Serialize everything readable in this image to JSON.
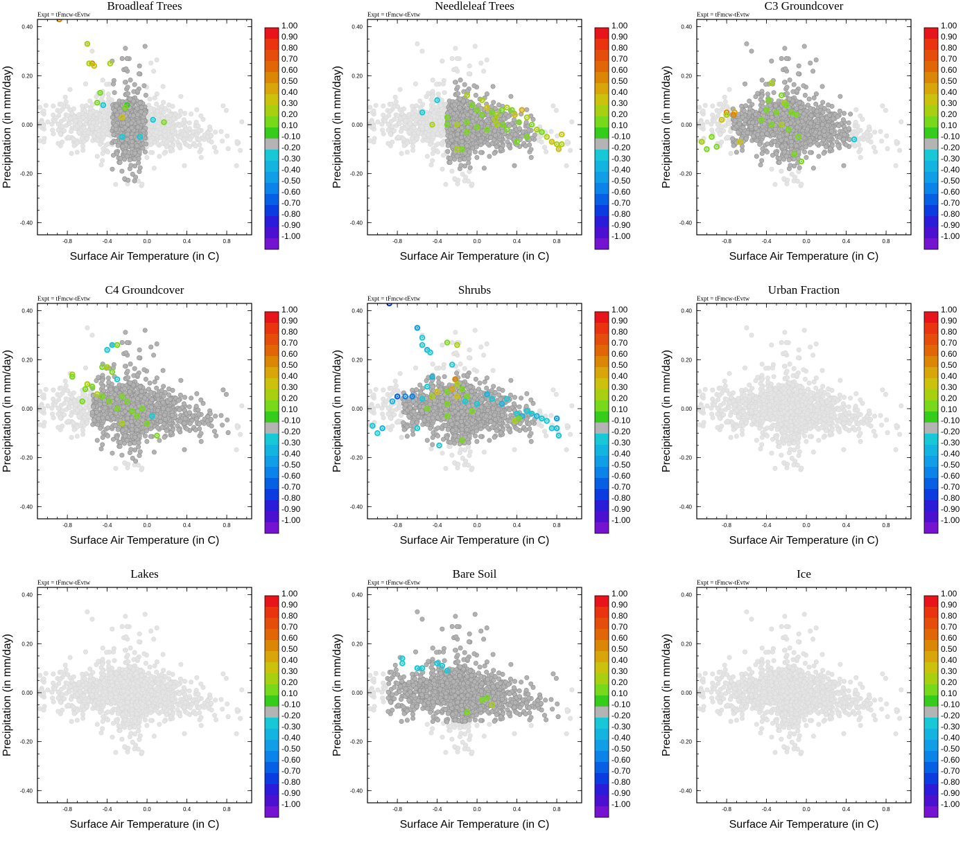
{
  "figure": {
    "expt_label": "Expt = tFmcw-tEvtw"
  },
  "chart_data": [
    {
      "type": "scatter",
      "title": "Broadleaf Trees",
      "xlabel": "Surface Air Temperature (in C)",
      "ylabel": "Precipitation (in mm/day)",
      "xlim": [
        -1.1,
        1.05
      ],
      "ylim": [
        -0.45,
        0.43
      ],
      "xticks": [
        "-0.8",
        "-0.4",
        "0.0",
        "0.4",
        "0.8"
      ],
      "yticks": [
        "0.40",
        "0.20",
        "0.00",
        "-0.20",
        "-0.40"
      ],
      "colored_points": [
        {
          "x": -0.88,
          "y": 0.43,
          "v": 0.6
        },
        {
          "x": -0.6,
          "y": 0.33,
          "v": 0.3
        },
        {
          "x": -0.55,
          "y": 0.25,
          "v": 0.6
        },
        {
          "x": -0.53,
          "y": 0.24,
          "v": 0.4
        },
        {
          "x": -0.58,
          "y": 0.25,
          "v": 0.3
        },
        {
          "x": -0.37,
          "y": 0.25,
          "v": 0.3
        },
        {
          "x": -0.47,
          "y": 0.13,
          "v": 0.2
        },
        {
          "x": -0.5,
          "y": 0.09,
          "v": 0.2
        },
        {
          "x": -0.44,
          "y": 0.08,
          "v": -0.2
        },
        {
          "x": -0.2,
          "y": 0.08,
          "v": 0.1
        },
        {
          "x": -0.22,
          "y": 0.07,
          "v": 0.2
        },
        {
          "x": -0.25,
          "y": 0.03,
          "v": 0.4
        },
        {
          "x": 0.06,
          "y": 0.02,
          "v": -0.2
        },
        {
          "x": 0.17,
          "y": 0.01,
          "v": 0.2
        },
        {
          "x": -0.25,
          "y": -0.05,
          "v": -0.2
        },
        {
          "x": -0.07,
          "y": -0.05,
          "v": -0.2
        }
      ]
    },
    {
      "type": "scatter",
      "title": "Needleleaf Trees",
      "xlabel": "Surface Air Temperature (in C)",
      "ylabel": "Precipitation (in mm/day)",
      "xlim": [
        -1.1,
        1.05
      ],
      "ylim": [
        -0.45,
        0.43
      ],
      "xticks": [
        "-0.8",
        "-0.4",
        "0.0",
        "0.4",
        "0.8"
      ],
      "yticks": [
        "0.40",
        "0.20",
        "0.00",
        "-0.20",
        "-0.40"
      ],
      "colored_points": [
        {
          "x": -0.55,
          "y": 0.05,
          "v": -0.2
        },
        {
          "x": -0.4,
          "y": 0.1,
          "v": -0.2
        },
        {
          "x": -0.45,
          "y": 0.0,
          "v": 0.3
        },
        {
          "x": -0.3,
          "y": 0.03,
          "v": 0.2
        },
        {
          "x": -0.1,
          "y": 0.12,
          "v": 0.3
        },
        {
          "x": -0.05,
          "y": 0.08,
          "v": 0.2
        },
        {
          "x": 0.0,
          "y": 0.06,
          "v": 0.2
        },
        {
          "x": 0.05,
          "y": 0.1,
          "v": 0.3
        },
        {
          "x": 0.1,
          "y": 0.07,
          "v": 0.4
        },
        {
          "x": 0.15,
          "y": 0.05,
          "v": 0.2
        },
        {
          "x": 0.2,
          "y": 0.04,
          "v": 0.3
        },
        {
          "x": 0.25,
          "y": 0.06,
          "v": 0.2
        },
        {
          "x": 0.3,
          "y": 0.07,
          "v": 0.3
        },
        {
          "x": 0.35,
          "y": 0.06,
          "v": 0.2
        },
        {
          "x": 0.38,
          "y": 0.04,
          "v": 0.4
        },
        {
          "x": 0.45,
          "y": 0.06,
          "v": 0.5
        },
        {
          "x": 0.5,
          "y": 0.03,
          "v": 0.3
        },
        {
          "x": 0.42,
          "y": 0.01,
          "v": 0.2
        },
        {
          "x": 0.55,
          "y": 0.0,
          "v": 0.2
        },
        {
          "x": 0.6,
          "y": -0.02,
          "v": 0.3
        },
        {
          "x": 0.65,
          "y": -0.03,
          "v": 0.2
        },
        {
          "x": 0.7,
          "y": -0.05,
          "v": 0.3
        },
        {
          "x": 0.75,
          "y": -0.07,
          "v": 0.4
        },
        {
          "x": 0.8,
          "y": -0.08,
          "v": 0.3
        },
        {
          "x": 0.85,
          "y": -0.04,
          "v": 0.4
        },
        {
          "x": 0.85,
          "y": -0.08,
          "v": 0.3
        },
        {
          "x": 0.82,
          "y": -0.1,
          "v": 0.4
        },
        {
          "x": 0.5,
          "y": -0.05,
          "v": 0.2
        },
        {
          "x": 0.4,
          "y": -0.07,
          "v": 0.2
        },
        {
          "x": 0.3,
          "y": -0.02,
          "v": 0.2
        },
        {
          "x": 0.2,
          "y": 0.0,
          "v": 0.3
        },
        {
          "x": 0.1,
          "y": -0.02,
          "v": 0.2
        },
        {
          "x": 0.0,
          "y": -0.01,
          "v": 0.2
        },
        {
          "x": -0.1,
          "y": -0.03,
          "v": 0.2
        },
        {
          "x": -0.15,
          "y": -0.1,
          "v": 0.2
        },
        {
          "x": -0.2,
          "y": -0.1,
          "v": 0.3
        },
        {
          "x": -0.1,
          "y": 0.01,
          "v": 0.2
        },
        {
          "x": -0.2,
          "y": 0.0,
          "v": 0.3
        },
        {
          "x": -0.3,
          "y": 0.0,
          "v": 0.2
        },
        {
          "x": 0.05,
          "y": 0.04,
          "v": 0.2
        },
        {
          "x": 0.18,
          "y": 0.02,
          "v": 0.3
        },
        {
          "x": 0.26,
          "y": 0.0,
          "v": 0.2
        }
      ]
    },
    {
      "type": "scatter",
      "title": "C3 Groundcover",
      "xlabel": "Surface Air Temperature (in C)",
      "ylabel": "Precipitation (in mm/day)",
      "xlim": [
        -1.1,
        1.05
      ],
      "ylim": [
        -0.45,
        0.43
      ],
      "xticks": [
        "-0.8",
        "-0.4",
        "0.0",
        "0.4",
        "0.8"
      ],
      "yticks": [
        "0.40",
        "0.20",
        "0.00",
        "-0.20",
        "-0.40"
      ],
      "colored_points": [
        {
          "x": -0.8,
          "y": 0.05,
          "v": 0.6
        },
        {
          "x": -0.72,
          "y": 0.05,
          "v": 0.5
        },
        {
          "x": -0.73,
          "y": 0.04,
          "v": 0.6
        },
        {
          "x": -0.85,
          "y": 0.02,
          "v": 0.4
        },
        {
          "x": -0.8,
          "y": 0.04,
          "v": 0.3
        },
        {
          "x": -0.95,
          "y": -0.05,
          "v": 0.2
        },
        {
          "x": -1.05,
          "y": -0.07,
          "v": 0.3
        },
        {
          "x": -1.0,
          "y": -0.1,
          "v": 0.2
        },
        {
          "x": -0.9,
          "y": -0.09,
          "v": 0.2
        },
        {
          "x": -0.67,
          "y": -0.07,
          "v": 0.4
        },
        {
          "x": -0.35,
          "y": 0.17,
          "v": 0.3
        },
        {
          "x": -0.38,
          "y": 0.1,
          "v": 0.2
        },
        {
          "x": -0.25,
          "y": 0.12,
          "v": 0.2
        },
        {
          "x": -0.22,
          "y": 0.09,
          "v": 0.3
        },
        {
          "x": -0.2,
          "y": 0.08,
          "v": 0.2
        },
        {
          "x": -0.3,
          "y": 0.05,
          "v": 0.2
        },
        {
          "x": -0.15,
          "y": 0.05,
          "v": 0.2
        },
        {
          "x": -0.1,
          "y": 0.04,
          "v": 0.2
        },
        {
          "x": -0.25,
          "y": 0.0,
          "v": 0.3
        },
        {
          "x": -0.35,
          "y": 0.0,
          "v": 0.2
        },
        {
          "x": -0.18,
          "y": -0.02,
          "v": 0.2
        },
        {
          "x": -0.08,
          "y": -0.05,
          "v": 0.2
        },
        {
          "x": -0.12,
          "y": -0.12,
          "v": 0.2
        },
        {
          "x": -0.05,
          "y": -0.15,
          "v": 0.2
        },
        {
          "x": 0.48,
          "y": -0.06,
          "v": -0.2
        },
        {
          "x": -0.4,
          "y": 0.06,
          "v": 0.2
        },
        {
          "x": -0.45,
          "y": 0.02,
          "v": 0.2
        }
      ]
    },
    {
      "type": "scatter",
      "title": "C4 Groundcover",
      "xlabel": "Surface Air Temperature (in C)",
      "ylabel": "Precipitation (in mm/day)",
      "xlim": [
        -1.1,
        1.05
      ],
      "ylim": [
        -0.45,
        0.43
      ],
      "xticks": [
        "-0.8",
        "-0.4",
        "0.0",
        "0.4",
        "0.8"
      ],
      "yticks": [
        "0.40",
        "0.20",
        "0.00",
        "-0.20",
        "-0.40"
      ],
      "colored_points": [
        {
          "x": -0.75,
          "y": 0.14,
          "v": 0.3
        },
        {
          "x": -0.75,
          "y": 0.13,
          "v": 0.2
        },
        {
          "x": -0.35,
          "y": 0.26,
          "v": -0.2
        },
        {
          "x": -0.4,
          "y": 0.24,
          "v": -0.2
        },
        {
          "x": -0.3,
          "y": 0.26,
          "v": 0.2
        },
        {
          "x": -0.45,
          "y": 0.17,
          "v": 0.2
        },
        {
          "x": -0.4,
          "y": 0.17,
          "v": 0.3
        },
        {
          "x": -0.35,
          "y": 0.15,
          "v": 0.2
        },
        {
          "x": -0.3,
          "y": 0.12,
          "v": -0.2
        },
        {
          "x": -0.6,
          "y": 0.1,
          "v": 0.3
        },
        {
          "x": -0.62,
          "y": 0.08,
          "v": 0.2
        },
        {
          "x": -0.55,
          "y": 0.09,
          "v": 0.2
        },
        {
          "x": -0.5,
          "y": 0.06,
          "v": 0.3
        },
        {
          "x": -0.45,
          "y": 0.05,
          "v": 0.2
        },
        {
          "x": -0.38,
          "y": 0.03,
          "v": 0.2
        },
        {
          "x": -0.25,
          "y": 0.05,
          "v": 0.2
        },
        {
          "x": -0.2,
          "y": 0.03,
          "v": 0.2
        },
        {
          "x": -0.3,
          "y": 0.0,
          "v": 0.2
        },
        {
          "x": -0.15,
          "y": -0.01,
          "v": 0.2
        },
        {
          "x": -0.05,
          "y": 0.0,
          "v": 0.2
        },
        {
          "x": -0.1,
          "y": -0.03,
          "v": 0.2
        },
        {
          "x": -0.25,
          "y": -0.06,
          "v": 0.3
        },
        {
          "x": 0.05,
          "y": -0.03,
          "v": -0.2
        },
        {
          "x": 0.0,
          "y": -0.06,
          "v": 0.2
        },
        {
          "x": 0.1,
          "y": -0.11,
          "v": 0.2
        },
        {
          "x": -0.65,
          "y": 0.03,
          "v": 0.2
        }
      ]
    },
    {
      "type": "scatter",
      "title": "Shrubs",
      "xlabel": "Surface Air Temperature (in C)",
      "ylabel": "Precipitation (in mm/day)",
      "xlim": [
        -1.1,
        1.05
      ],
      "ylim": [
        -0.45,
        0.43
      ],
      "xticks": [
        "-0.8",
        "-0.4",
        "0.0",
        "0.4",
        "0.8"
      ],
      "yticks": [
        "0.40",
        "0.20",
        "0.00",
        "-0.20",
        "-0.40"
      ],
      "colored_points": [
        {
          "x": -0.88,
          "y": 0.43,
          "v": -0.7
        },
        {
          "x": -0.6,
          "y": 0.33,
          "v": -0.4
        },
        {
          "x": -0.55,
          "y": 0.29,
          "v": -0.2
        },
        {
          "x": -0.55,
          "y": 0.26,
          "v": -0.2
        },
        {
          "x": -0.5,
          "y": 0.24,
          "v": -0.3
        },
        {
          "x": -0.47,
          "y": 0.23,
          "v": -0.2
        },
        {
          "x": -0.3,
          "y": 0.27,
          "v": 0.2
        },
        {
          "x": -0.2,
          "y": 0.26,
          "v": 0.3
        },
        {
          "x": -0.25,
          "y": 0.18,
          "v": -0.2
        },
        {
          "x": -0.45,
          "y": 0.13,
          "v": -0.3
        },
        {
          "x": -0.5,
          "y": 0.09,
          "v": -0.2
        },
        {
          "x": -0.4,
          "y": 0.07,
          "v": 0.4
        },
        {
          "x": -0.45,
          "y": 0.05,
          "v": 0.3
        },
        {
          "x": -0.3,
          "y": 0.07,
          "v": 0.2
        },
        {
          "x": -0.25,
          "y": 0.08,
          "v": 0.5
        },
        {
          "x": -0.22,
          "y": 0.12,
          "v": 0.6
        },
        {
          "x": -0.2,
          "y": 0.1,
          "v": 0.3
        },
        {
          "x": -0.15,
          "y": 0.08,
          "v": 0.2
        },
        {
          "x": -0.1,
          "y": 0.05,
          "v": 0.2
        },
        {
          "x": -0.12,
          "y": 0.03,
          "v": -0.2
        },
        {
          "x": -0.3,
          "y": 0.02,
          "v": 0.2
        },
        {
          "x": -0.5,
          "y": 0.0,
          "v": 0.2
        },
        {
          "x": -0.8,
          "y": 0.05,
          "v": -0.6
        },
        {
          "x": -0.72,
          "y": 0.05,
          "v": -0.5
        },
        {
          "x": -0.65,
          "y": 0.05,
          "v": -0.5
        },
        {
          "x": -0.85,
          "y": 0.03,
          "v": -0.3
        },
        {
          "x": -0.55,
          "y": 0.04,
          "v": -0.2
        },
        {
          "x": -1.05,
          "y": -0.07,
          "v": -0.2
        },
        {
          "x": -1.0,
          "y": -0.1,
          "v": -0.2
        },
        {
          "x": -0.95,
          "y": -0.08,
          "v": -0.3
        },
        {
          "x": -0.6,
          "y": -0.08,
          "v": -0.2
        },
        {
          "x": 0.1,
          "y": 0.06,
          "v": -0.3
        },
        {
          "x": 0.15,
          "y": 0.04,
          "v": -0.2
        },
        {
          "x": 0.25,
          "y": 0.02,
          "v": -0.3
        },
        {
          "x": 0.3,
          "y": 0.04,
          "v": -0.2
        },
        {
          "x": 0.4,
          "y": -0.02,
          "v": -0.2
        },
        {
          "x": 0.45,
          "y": -0.03,
          "v": -0.3
        },
        {
          "x": 0.5,
          "y": -0.01,
          "v": -0.2
        },
        {
          "x": 0.55,
          "y": -0.02,
          "v": -0.2
        },
        {
          "x": 0.6,
          "y": -0.03,
          "v": -0.3
        },
        {
          "x": 0.65,
          "y": -0.04,
          "v": -0.2
        },
        {
          "x": 0.7,
          "y": -0.05,
          "v": -0.2
        },
        {
          "x": 0.8,
          "y": -0.04,
          "v": -0.4
        },
        {
          "x": 0.8,
          "y": -0.08,
          "v": -0.3
        },
        {
          "x": 0.75,
          "y": -0.08,
          "v": -0.2
        },
        {
          "x": 0.82,
          "y": -0.11,
          "v": -0.2
        },
        {
          "x": 0.38,
          "y": -0.05,
          "v": 0.3
        },
        {
          "x": 0.42,
          "y": -0.04,
          "v": 0.2
        },
        {
          "x": -0.38,
          "y": -0.15,
          "v": -0.2
        },
        {
          "x": -0.15,
          "y": -0.13,
          "v": 0.2
        },
        {
          "x": -0.3,
          "y": -0.03,
          "v": 0.2
        },
        {
          "x": -0.05,
          "y": -0.01,
          "v": 0.2
        },
        {
          "x": 0.0,
          "y": 0.02,
          "v": -0.2
        },
        {
          "x": -0.2,
          "y": 0.05,
          "v": 0.4
        }
      ]
    },
    {
      "type": "scatter",
      "title": "Urban Fraction",
      "xlabel": "Surface Air Temperature (in C)",
      "ylabel": "Precipitation (in mm/day)",
      "xlim": [
        -1.1,
        1.05
      ],
      "ylim": [
        -0.45,
        0.43
      ],
      "xticks": [
        "-0.8",
        "-0.4",
        "0.0",
        "0.4",
        "0.8"
      ],
      "yticks": [
        "0.40",
        "0.20",
        "0.00",
        "-0.20",
        "-0.40"
      ],
      "colored_points": []
    },
    {
      "type": "scatter",
      "title": "Lakes",
      "xlabel": "Surface Air Temperature (in C)",
      "ylabel": "Precipitation (in mm/day)",
      "xlim": [
        -1.1,
        1.05
      ],
      "ylim": [
        -0.45,
        0.43
      ],
      "xticks": [
        "-0.8",
        "-0.4",
        "0.0",
        "0.4",
        "0.8"
      ],
      "yticks": [
        "0.40",
        "0.20",
        "0.00",
        "-0.20",
        "-0.40"
      ],
      "colored_points": []
    },
    {
      "type": "scatter",
      "title": "Bare Soil",
      "xlabel": "Surface Air Temperature (in C)",
      "ylabel": "Precipitation (in mm/day)",
      "xlim": [
        -1.1,
        1.05
      ],
      "ylim": [
        -0.45,
        0.43
      ],
      "xticks": [
        "-0.8",
        "-0.4",
        "0.0",
        "0.4",
        "0.8"
      ],
      "yticks": [
        "0.40",
        "0.20",
        "0.00",
        "-0.20",
        "-0.40"
      ],
      "colored_points": [
        {
          "x": -0.75,
          "y": 0.14,
          "v": -0.2
        },
        {
          "x": -0.75,
          "y": 0.12,
          "v": -0.2
        },
        {
          "x": -0.6,
          "y": 0.1,
          "v": -0.2
        },
        {
          "x": -0.55,
          "y": 0.1,
          "v": -0.2
        },
        {
          "x": -0.4,
          "y": 0.12,
          "v": -0.2
        },
        {
          "x": -0.35,
          "y": 0.11,
          "v": -0.2
        },
        {
          "x": -0.3,
          "y": 0.09,
          "v": -0.2
        },
        {
          "x": 0.1,
          "y": -0.02,
          "v": 0.2
        },
        {
          "x": 0.05,
          "y": -0.03,
          "v": 0.2
        },
        {
          "x": 0.15,
          "y": -0.05,
          "v": 0.3
        },
        {
          "x": -0.1,
          "y": -0.08,
          "v": 0.2
        }
      ]
    },
    {
      "type": "scatter",
      "title": "Ice",
      "xlabel": "Surface Air Temperature (in C)",
      "ylabel": "Precipitation (in mm/day)",
      "xlim": [
        -1.1,
        1.05
      ],
      "ylim": [
        -0.45,
        0.43
      ],
      "xticks": [
        "-0.8",
        "-0.4",
        "0.0",
        "0.4",
        "0.8"
      ],
      "yticks": [
        "0.40",
        "0.20",
        "0.00",
        "-0.20",
        "-0.40"
      ],
      "colored_points": []
    }
  ],
  "colorbar": {
    "labels": [
      "1.00",
      "0.90",
      "0.80",
      "0.70",
      "0.60",
      "0.50",
      "0.40",
      "0.30",
      "0.20",
      "0.10",
      "-0.10",
      "-0.20",
      "-0.30",
      "-0.40",
      "-0.50",
      "-0.60",
      "-0.70",
      "-0.80",
      "-0.90",
      "-1.00"
    ],
    "colors": [
      "#e8141c",
      "#ea3410",
      "#e54e0a",
      "#e06606",
      "#dc8606",
      "#d8a60a",
      "#ccc20e",
      "#a8d010",
      "#78d81a",
      "#36cc1c",
      "#b4b4b4",
      "#18c8d6",
      "#14b4e0",
      "#109ee6",
      "#0a84e8",
      "#0660e4",
      "#0a3ce0",
      "#2a1cd8",
      "#4c10d0",
      "#7414d0"
    ],
    "gray_neutral": "#b2b2b2",
    "gray_background": "#e4e4e4"
  }
}
